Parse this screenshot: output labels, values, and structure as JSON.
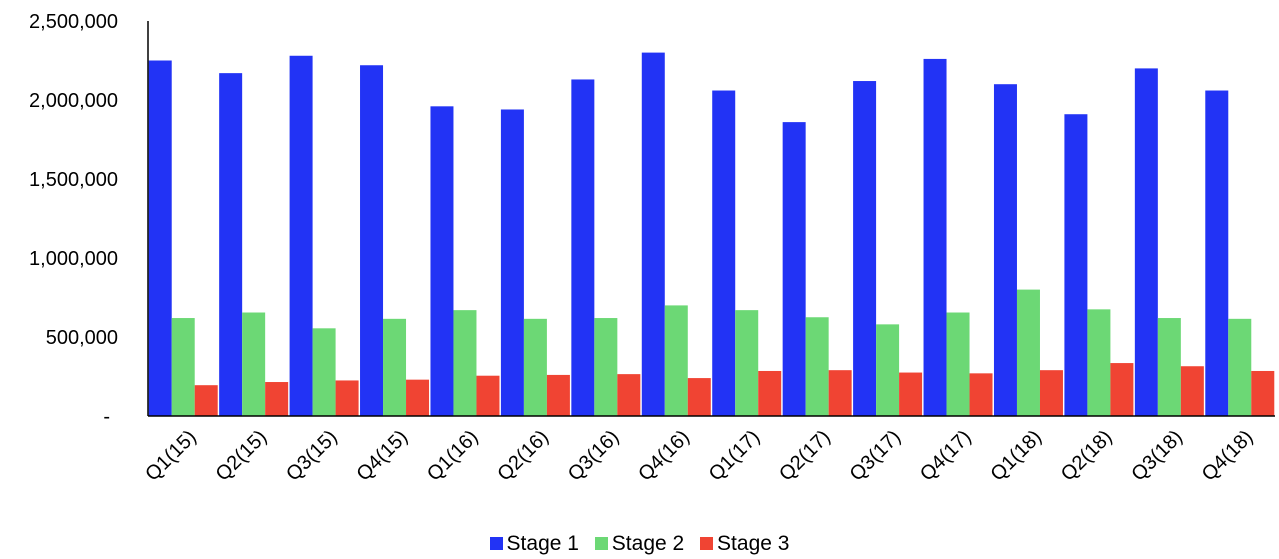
{
  "chart_data": {
    "type": "bar",
    "categories": [
      "Q1(15)",
      "Q2(15)",
      "Q3(15)",
      "Q4(15)",
      "Q1(16)",
      "Q2(16)",
      "Q3(16)",
      "Q4(16)",
      "Q1(17)",
      "Q2(17)",
      "Q3(17)",
      "Q4(17)",
      "Q1(18)",
      "Q2(18)",
      "Q3(18)",
      "Q4(18)"
    ],
    "series": [
      {
        "name": "Stage 1",
        "color": "#2233f5",
        "values": [
          2250000,
          2170000,
          2280000,
          2220000,
          1960000,
          1940000,
          2130000,
          2300000,
          2060000,
          1860000,
          2120000,
          2260000,
          2100000,
          1910000,
          2200000,
          2060000
        ]
      },
      {
        "name": "Stage 2",
        "color": "#6cd875",
        "values": [
          620000,
          655000,
          555000,
          615000,
          670000,
          615000,
          620000,
          700000,
          670000,
          625000,
          580000,
          655000,
          800000,
          675000,
          620000,
          615000
        ]
      },
      {
        "name": "Stage 3",
        "color": "#f04433",
        "values": [
          195000,
          215000,
          225000,
          230000,
          255000,
          260000,
          265000,
          240000,
          285000,
          290000,
          275000,
          270000,
          290000,
          335000,
          315000,
          285000
        ]
      }
    ],
    "y_ticks": [
      "-",
      "500,000",
      "1,000,000",
      "1,500,000",
      "2,000,000",
      "2,500,000"
    ],
    "ylim": [
      0,
      2500000
    ],
    "grid": false,
    "legend_position": "bottom"
  }
}
